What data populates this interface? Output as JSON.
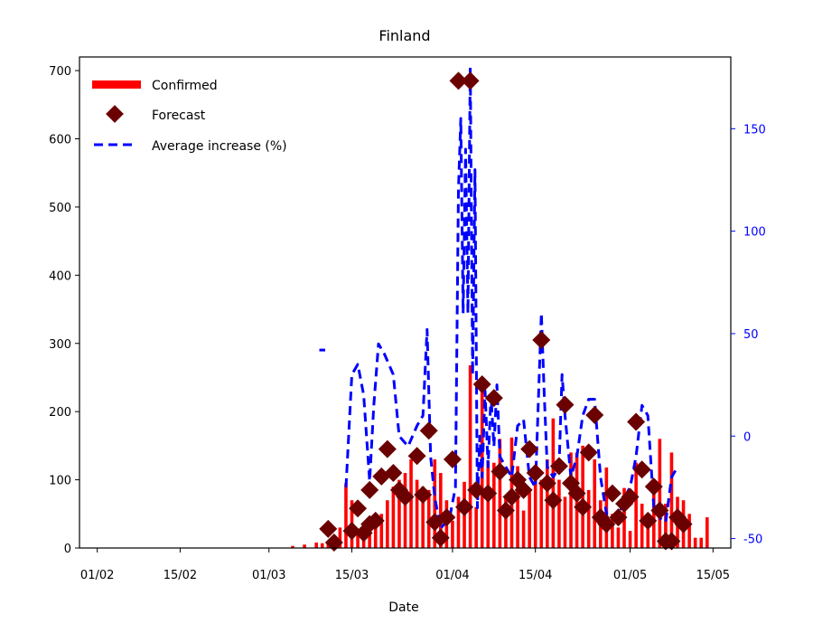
{
  "colors": {
    "confirmed": "#ff0000",
    "forecast": "#6b0000",
    "average": "#0000ff",
    "right_axis": "#0000ff"
  },
  "chart_data": {
    "type": "bar",
    "title": "Finland",
    "xlabel": "Date",
    "ylabel": "",
    "y2label": "",
    "x_ticks": [
      "01/02",
      "15/02",
      "01/03",
      "15/03",
      "01/04",
      "15/04",
      "01/05",
      "15/05"
    ],
    "x_tick_days": [
      0,
      14,
      29,
      43,
      60,
      74,
      90,
      104
    ],
    "xlim_days": [
      -3,
      107
    ],
    "ylim": [
      0,
      720
    ],
    "y_ticks": [
      0,
      100,
      200,
      300,
      400,
      500,
      600,
      700
    ],
    "y2lim": [
      -54.6,
      185
    ],
    "y2_ticks": [
      -50,
      0,
      50,
      100,
      150
    ],
    "legend": {
      "placement": "top-left",
      "entries": [
        "Confirmed",
        "Forecast",
        "Average increase (%)"
      ]
    },
    "series": [
      {
        "name": "Confirmed",
        "kind": "bar",
        "points": [
          {
            "day": 33,
            "value": 3
          },
          {
            "day": 35,
            "value": 5
          },
          {
            "day": 37,
            "value": 8
          },
          {
            "day": 38,
            "value": 7
          },
          {
            "day": 39,
            "value": 10
          },
          {
            "day": 40,
            "value": 10
          },
          {
            "day": 41,
            "value": 30
          },
          {
            "day": 42,
            "value": 95
          },
          {
            "day": 43,
            "value": 70
          },
          {
            "day": 44,
            "value": 28
          },
          {
            "day": 45,
            "value": 25
          },
          {
            "day": 46,
            "value": 30
          },
          {
            "day": 47,
            "value": 35
          },
          {
            "day": 48,
            "value": 50
          },
          {
            "day": 49,
            "value": 70
          },
          {
            "day": 50,
            "value": 90
          },
          {
            "day": 51,
            "value": 100
          },
          {
            "day": 52,
            "value": 110
          },
          {
            "day": 53,
            "value": 130
          },
          {
            "day": 54,
            "value": 100
          },
          {
            "day": 55,
            "value": 90
          },
          {
            "day": 56,
            "value": 85
          },
          {
            "day": 57,
            "value": 130
          },
          {
            "day": 58,
            "value": 110
          },
          {
            "day": 59,
            "value": 70
          },
          {
            "day": 60,
            "value": 40
          },
          {
            "day": 61,
            "value": 75
          },
          {
            "day": 62,
            "value": 97
          },
          {
            "day": 63,
            "value": 268
          },
          {
            "day": 64,
            "value": 60
          },
          {
            "day": 65,
            "value": 248
          },
          {
            "day": 66,
            "value": 128
          },
          {
            "day": 67,
            "value": 125
          },
          {
            "day": 68,
            "value": 160
          },
          {
            "day": 69,
            "value": 75
          },
          {
            "day": 70,
            "value": 162
          },
          {
            "day": 71,
            "value": 120
          },
          {
            "day": 72,
            "value": 55
          },
          {
            "day": 73,
            "value": 85
          },
          {
            "day": 74,
            "value": 100
          },
          {
            "day": 75,
            "value": 100
          },
          {
            "day": 76,
            "value": 130
          },
          {
            "day": 77,
            "value": 190
          },
          {
            "day": 78,
            "value": 100
          },
          {
            "day": 79,
            "value": 75
          },
          {
            "day": 80,
            "value": 140
          },
          {
            "day": 81,
            "value": 140
          },
          {
            "day": 82,
            "value": 150
          },
          {
            "day": 83,
            "value": 85
          },
          {
            "day": 84,
            "value": 130
          },
          {
            "day": 85,
            "value": 70
          },
          {
            "day": 86,
            "value": 118
          },
          {
            "day": 87,
            "value": 50
          },
          {
            "day": 88,
            "value": 30
          },
          {
            "day": 89,
            "value": 88
          },
          {
            "day": 90,
            "value": 25
          },
          {
            "day": 91,
            "value": 125
          },
          {
            "day": 92,
            "value": 65
          },
          {
            "day": 93,
            "value": 40
          },
          {
            "day": 94,
            "value": 80
          },
          {
            "day": 95,
            "value": 160
          },
          {
            "day": 96,
            "value": 65
          },
          {
            "day": 97,
            "value": 140
          },
          {
            "day": 98,
            "value": 75
          },
          {
            "day": 99,
            "value": 70
          },
          {
            "day": 100,
            "value": 50
          },
          {
            "day": 101,
            "value": 15
          },
          {
            "day": 102,
            "value": 15
          },
          {
            "day": 103,
            "value": 45
          }
        ]
      },
      {
        "name": "Forecast",
        "kind": "scatter",
        "points": [
          {
            "day": 39,
            "value": 28
          },
          {
            "day": 40,
            "value": 8
          },
          {
            "day": 43,
            "value": 25
          },
          {
            "day": 44,
            "value": 58
          },
          {
            "day": 45,
            "value": 22
          },
          {
            "day": 46,
            "value": 85
          },
          {
            "day": 46,
            "value": 35
          },
          {
            "day": 47,
            "value": 40
          },
          {
            "day": 48,
            "value": 105
          },
          {
            "day": 49,
            "value": 145
          },
          {
            "day": 50,
            "value": 110
          },
          {
            "day": 51,
            "value": 85
          },
          {
            "day": 52,
            "value": 75
          },
          {
            "day": 54,
            "value": 135
          },
          {
            "day": 55,
            "value": 78
          },
          {
            "day": 56,
            "value": 172
          },
          {
            "day": 57,
            "value": 38
          },
          {
            "day": 58,
            "value": 15
          },
          {
            "day": 59,
            "value": 45
          },
          {
            "day": 60,
            "value": 130
          },
          {
            "day": 61,
            "value": 685
          },
          {
            "day": 62,
            "value": 60
          },
          {
            "day": 63,
            "value": 685
          },
          {
            "day": 64,
            "value": 85
          },
          {
            "day": 65,
            "value": 240
          },
          {
            "day": 66,
            "value": 80
          },
          {
            "day": 67,
            "value": 220
          },
          {
            "day": 68,
            "value": 112
          },
          {
            "day": 69,
            "value": 55
          },
          {
            "day": 70,
            "value": 75
          },
          {
            "day": 71,
            "value": 100
          },
          {
            "day": 72,
            "value": 85
          },
          {
            "day": 73,
            "value": 145
          },
          {
            "day": 74,
            "value": 110
          },
          {
            "day": 75,
            "value": 305
          },
          {
            "day": 76,
            "value": 95
          },
          {
            "day": 77,
            "value": 70
          },
          {
            "day": 78,
            "value": 120
          },
          {
            "day": 79,
            "value": 210
          },
          {
            "day": 80,
            "value": 95
          },
          {
            "day": 81,
            "value": 80
          },
          {
            "day": 82,
            "value": 60
          },
          {
            "day": 83,
            "value": 140
          },
          {
            "day": 84,
            "value": 195
          },
          {
            "day": 85,
            "value": 45
          },
          {
            "day": 86,
            "value": 35
          },
          {
            "day": 87,
            "value": 80
          },
          {
            "day": 88,
            "value": 45
          },
          {
            "day": 89,
            "value": 65
          },
          {
            "day": 90,
            "value": 75
          },
          {
            "day": 91,
            "value": 185
          },
          {
            "day": 92,
            "value": 115
          },
          {
            "day": 93,
            "value": 40
          },
          {
            "day": 94,
            "value": 90
          },
          {
            "day": 95,
            "value": 55
          },
          {
            "day": 96,
            "value": 10
          },
          {
            "day": 97,
            "value": 10
          },
          {
            "day": 98,
            "value": 45
          },
          {
            "day": 99,
            "value": 35
          }
        ]
      },
      {
        "name": "Average increase (%)",
        "kind": "line",
        "axis": "right",
        "segments": [
          [
            {
              "day": 37.5,
              "value": 42
            },
            {
              "day": 38.5,
              "value": 42
            }
          ],
          [
            {
              "day": 42,
              "value": -25
            },
            {
              "day": 43,
              "value": 30
            },
            {
              "day": 44,
              "value": 35
            },
            {
              "day": 45,
              "value": 20
            },
            {
              "day": 46,
              "value": -22
            },
            {
              "day": 46.7,
              "value": 15
            },
            {
              "day": 47.5,
              "value": 45
            },
            {
              "day": 48.5,
              "value": 40
            },
            {
              "day": 50,
              "value": 30
            },
            {
              "day": 51,
              "value": 0
            },
            {
              "day": 52.5,
              "value": -5
            },
            {
              "day": 54,
              "value": 5
            },
            {
              "day": 55,
              "value": 10
            },
            {
              "day": 55.7,
              "value": 52
            },
            {
              "day": 56.3,
              "value": -10
            },
            {
              "day": 57,
              "value": -30
            },
            {
              "day": 58,
              "value": -45
            },
            {
              "day": 59.5,
              "value": -40
            },
            {
              "day": 60.5,
              "value": -25
            },
            {
              "day": 61,
              "value": 120
            },
            {
              "day": 61.4,
              "value": 155
            },
            {
              "day": 61.8,
              "value": 60
            },
            {
              "day": 62.2,
              "value": 140
            },
            {
              "day": 62.6,
              "value": 60
            },
            {
              "day": 63,
              "value": 180
            },
            {
              "day": 63.4,
              "value": 30
            },
            {
              "day": 63.8,
              "value": 130
            },
            {
              "day": 64.2,
              "value": -35
            },
            {
              "day": 64.6,
              "value": 0
            },
            {
              "day": 65,
              "value": -20
            },
            {
              "day": 65.5,
              "value": 22
            },
            {
              "day": 66,
              "value": -15
            },
            {
              "day": 66.5,
              "value": 20
            },
            {
              "day": 67,
              "value": -5
            },
            {
              "day": 67.5,
              "value": 25
            },
            {
              "day": 68,
              "value": -10
            },
            {
              "day": 69,
              "value": -15
            },
            {
              "day": 70,
              "value": -20
            },
            {
              "day": 71,
              "value": 5
            },
            {
              "day": 72,
              "value": 8
            },
            {
              "day": 73,
              "value": -20
            },
            {
              "day": 74,
              "value": -25
            },
            {
              "day": 75,
              "value": 60
            },
            {
              "day": 75.5,
              "value": 20
            },
            {
              "day": 76,
              "value": -15
            },
            {
              "day": 77,
              "value": -20
            },
            {
              "day": 78,
              "value": -15
            },
            {
              "day": 78.5,
              "value": 30
            },
            {
              "day": 79,
              "value": 10
            },
            {
              "day": 80,
              "value": -20
            },
            {
              "day": 81,
              "value": -10
            },
            {
              "day": 82,
              "value": 10
            },
            {
              "day": 83,
              "value": 18
            },
            {
              "day": 84,
              "value": 18
            },
            {
              "day": 85,
              "value": -20
            },
            {
              "day": 86,
              "value": -38
            },
            {
              "day": 87,
              "value": -38
            },
            {
              "day": 88,
              "value": -40
            },
            {
              "day": 89,
              "value": -30
            },
            {
              "day": 90,
              "value": -25
            },
            {
              "day": 91,
              "value": -10
            },
            {
              "day": 92,
              "value": 15
            },
            {
              "day": 93,
              "value": 10
            },
            {
              "day": 94,
              "value": -35
            },
            {
              "day": 95,
              "value": -40
            },
            {
              "day": 96,
              "value": -42
            },
            {
              "day": 97,
              "value": -20
            },
            {
              "day": 98,
              "value": -15
            }
          ]
        ]
      }
    ]
  }
}
